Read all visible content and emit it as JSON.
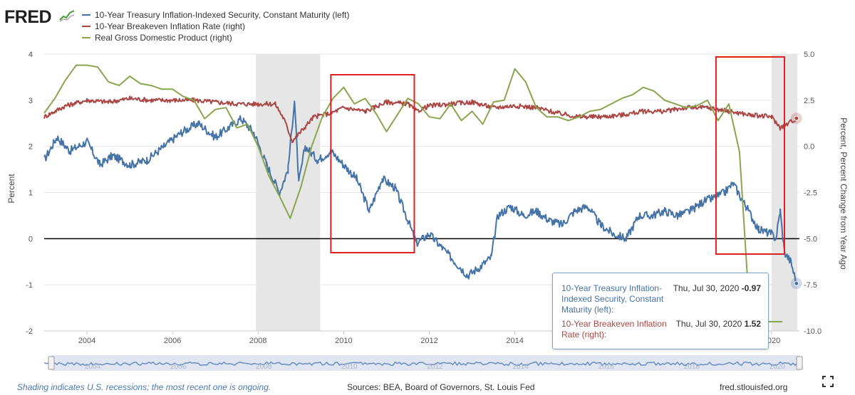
{
  "logo": {
    "text": "FRED"
  },
  "legend": [
    {
      "label": "10-Year Treasury Inflation-Indexed Security, Constant Maturity (left)",
      "color": "#4572a7"
    },
    {
      "label": "10-Year Breakeven Inflation Rate (right)",
      "color": "#aa4643"
    },
    {
      "label": "Real Gross Domestic Product (right)",
      "color": "#89a54e"
    }
  ],
  "chart_data": {
    "type": "line",
    "x_tick_labels": [
      "2004",
      "2006",
      "2008",
      "2010",
      "2012",
      "2014",
      "2016",
      "2018",
      "2020"
    ],
    "y_left": {
      "label": "Percent",
      "ticks": [
        "4",
        "3",
        "2",
        "1",
        "0",
        "-1",
        "-2"
      ],
      "range": [
        -2,
        4
      ]
    },
    "y_right": {
      "label": "Percent, Percent Change from Year Ago",
      "ticks": [
        "5.0",
        "2.5",
        "0.0",
        "-2.5",
        "-5.0",
        "-7.5",
        "-10.0"
      ],
      "range": [
        -10,
        5
      ]
    },
    "recessions": [
      [
        2007.95,
        2009.45
      ],
      [
        2020.0,
        2020.6
      ]
    ],
    "highlight_boxes": [
      [
        2009.7,
        2011.65
      ],
      [
        2018.7,
        2020.3
      ]
    ],
    "series": [
      {
        "name": "10-Year Treasury Inflation-Indexed Security, Constant Maturity (left)",
        "axis": "left",
        "color": "#4572a7",
        "x": [
          2003.0,
          2003.3,
          2003.6,
          2004.0,
          2004.3,
          2004.6,
          2005.0,
          2005.4,
          2005.8,
          2006.2,
          2006.6,
          2007.0,
          2007.3,
          2007.6,
          2007.9,
          2008.2,
          2008.5,
          2008.7,
          2008.85,
          2008.95,
          2009.1,
          2009.4,
          2009.7,
          2010.0,
          2010.3,
          2010.6,
          2010.9,
          2011.2,
          2011.5,
          2011.7,
          2012.0,
          2012.3,
          2012.6,
          2012.9,
          2013.2,
          2013.45,
          2013.6,
          2013.9,
          2014.2,
          2014.5,
          2014.8,
          2015.1,
          2015.4,
          2015.7,
          2016.0,
          2016.3,
          2016.6,
          2016.9,
          2017.2,
          2017.5,
          2017.8,
          2018.1,
          2018.4,
          2018.7,
          2018.9,
          2019.1,
          2019.4,
          2019.7,
          2020.0,
          2020.1,
          2020.2,
          2020.3,
          2020.45,
          2020.58
        ],
        "y": [
          1.7,
          2.2,
          1.9,
          2.1,
          1.6,
          1.8,
          1.6,
          1.7,
          2.0,
          2.3,
          2.5,
          2.2,
          2.4,
          2.6,
          2.3,
          1.6,
          1.0,
          1.5,
          3.0,
          1.2,
          2.0,
          1.7,
          1.9,
          1.6,
          1.3,
          0.6,
          1.3,
          1.1,
          0.4,
          -0.1,
          0.1,
          -0.2,
          -0.5,
          -0.8,
          -0.6,
          -0.4,
          0.5,
          0.7,
          0.5,
          0.6,
          0.4,
          0.3,
          0.6,
          0.7,
          0.3,
          0.1,
          0.0,
          0.5,
          0.5,
          0.6,
          0.5,
          0.6,
          0.8,
          0.9,
          1.0,
          1.2,
          0.7,
          0.2,
          0.1,
          0.0,
          0.6,
          -0.3,
          -0.5,
          -0.97
        ]
      },
      {
        "name": "10-Year Breakeven Inflation Rate (right)",
        "axis": "right",
        "color": "#aa4643",
        "x": [
          2003.0,
          2003.5,
          2004.0,
          2004.5,
          2005.0,
          2005.5,
          2006.0,
          2006.5,
          2007.0,
          2007.5,
          2008.0,
          2008.4,
          2008.6,
          2008.8,
          2009.0,
          2009.3,
          2009.7,
          2010.0,
          2010.5,
          2011.0,
          2011.5,
          2011.7,
          2012.0,
          2012.5,
          2013.0,
          2013.5,
          2014.0,
          2014.5,
          2015.0,
          2015.5,
          2016.0,
          2016.5,
          2017.0,
          2017.5,
          2018.0,
          2018.5,
          2019.0,
          2019.5,
          2020.0,
          2020.2,
          2020.35,
          2020.58
        ],
        "y": [
          1.6,
          2.2,
          2.5,
          2.4,
          2.6,
          2.5,
          2.5,
          2.5,
          2.4,
          2.3,
          2.3,
          2.3,
          1.5,
          0.3,
          0.8,
          1.6,
          1.8,
          2.1,
          1.9,
          2.4,
          2.3,
          1.9,
          2.2,
          2.3,
          2.4,
          2.1,
          2.2,
          2.1,
          1.8,
          1.6,
          1.6,
          1.7,
          1.9,
          1.9,
          2.1,
          2.1,
          1.9,
          1.7,
          1.6,
          1.0,
          1.2,
          1.52
        ]
      },
      {
        "name": "Real Gross Domestic Product (right)",
        "axis": "right",
        "color": "#89a54e",
        "x": [
          2003.0,
          2003.25,
          2003.5,
          2003.75,
          2004.0,
          2004.25,
          2004.5,
          2004.75,
          2005.0,
          2005.25,
          2005.5,
          2005.75,
          2006.0,
          2006.25,
          2006.5,
          2006.75,
          2007.0,
          2007.25,
          2007.5,
          2007.75,
          2008.0,
          2008.25,
          2008.5,
          2008.75,
          2009.0,
          2009.25,
          2009.5,
          2009.75,
          2010.0,
          2010.25,
          2010.5,
          2010.75,
          2011.0,
          2011.25,
          2011.5,
          2011.75,
          2012.0,
          2012.25,
          2012.5,
          2012.75,
          2013.0,
          2013.25,
          2013.5,
          2013.75,
          2014.0,
          2014.25,
          2014.5,
          2014.75,
          2015.0,
          2015.25,
          2015.5,
          2015.75,
          2016.0,
          2016.25,
          2016.5,
          2016.75,
          2017.0,
          2017.25,
          2017.5,
          2017.75,
          2018.0,
          2018.25,
          2018.5,
          2018.75,
          2019.0,
          2019.25,
          2019.5,
          2019.75,
          2020.0,
          2020.25
        ],
        "y": [
          1.8,
          2.6,
          3.6,
          4.4,
          4.4,
          4.3,
          3.5,
          3.3,
          3.8,
          3.4,
          3.3,
          3.1,
          3.1,
          2.7,
          2.5,
          1.5,
          2.0,
          2.1,
          1.0,
          1.2,
          0.0,
          -1.6,
          -2.7,
          -3.9,
          -2.2,
          0.0,
          1.6,
          2.6,
          3.2,
          2.3,
          2.6,
          1.8,
          0.8,
          1.7,
          2.6,
          2.3,
          1.6,
          1.5,
          2.3,
          1.4,
          1.9,
          1.2,
          2.4,
          2.5,
          4.2,
          3.5,
          2.1,
          1.6,
          1.6,
          1.4,
          1.6,
          1.9,
          2.0,
          2.3,
          2.6,
          2.8,
          3.2,
          3.0,
          2.5,
          2.3,
          2.1,
          2.2,
          2.5,
          1.4,
          2.3,
          -0.3,
          -9.5,
          -9.5,
          -9.5,
          -9.5
        ]
      }
    ],
    "tooltip": {
      "rows": [
        {
          "name": "10-Year Treasury Inflation-Indexed Security, Constant Maturity (left):",
          "date": "Thu, Jul 30, 2020",
          "value": "-0.97",
          "color": "#4572a7"
        },
        {
          "name": "10-Year Breakeven Inflation Rate (right):",
          "date": "Thu, Jul 30, 2020",
          "value": "1.52",
          "color": "#aa4643"
        }
      ]
    },
    "navigator_labels": [
      "2004",
      "2006",
      "2008",
      "2010",
      "2012",
      "2014",
      "2016",
      "2018",
      "2020"
    ]
  },
  "footer": {
    "note": "Shading indicates U.S. recessions; the most recent one is ongoing.",
    "sources": "Sources: BEA, Board of Governors, St. Louis Fed",
    "site": "fred.stlouisfed.org"
  },
  "colors": {
    "recession": "#e6e6e6",
    "highlight": "#e02020",
    "grid": "#e6e6e6",
    "zero": "#000000"
  }
}
